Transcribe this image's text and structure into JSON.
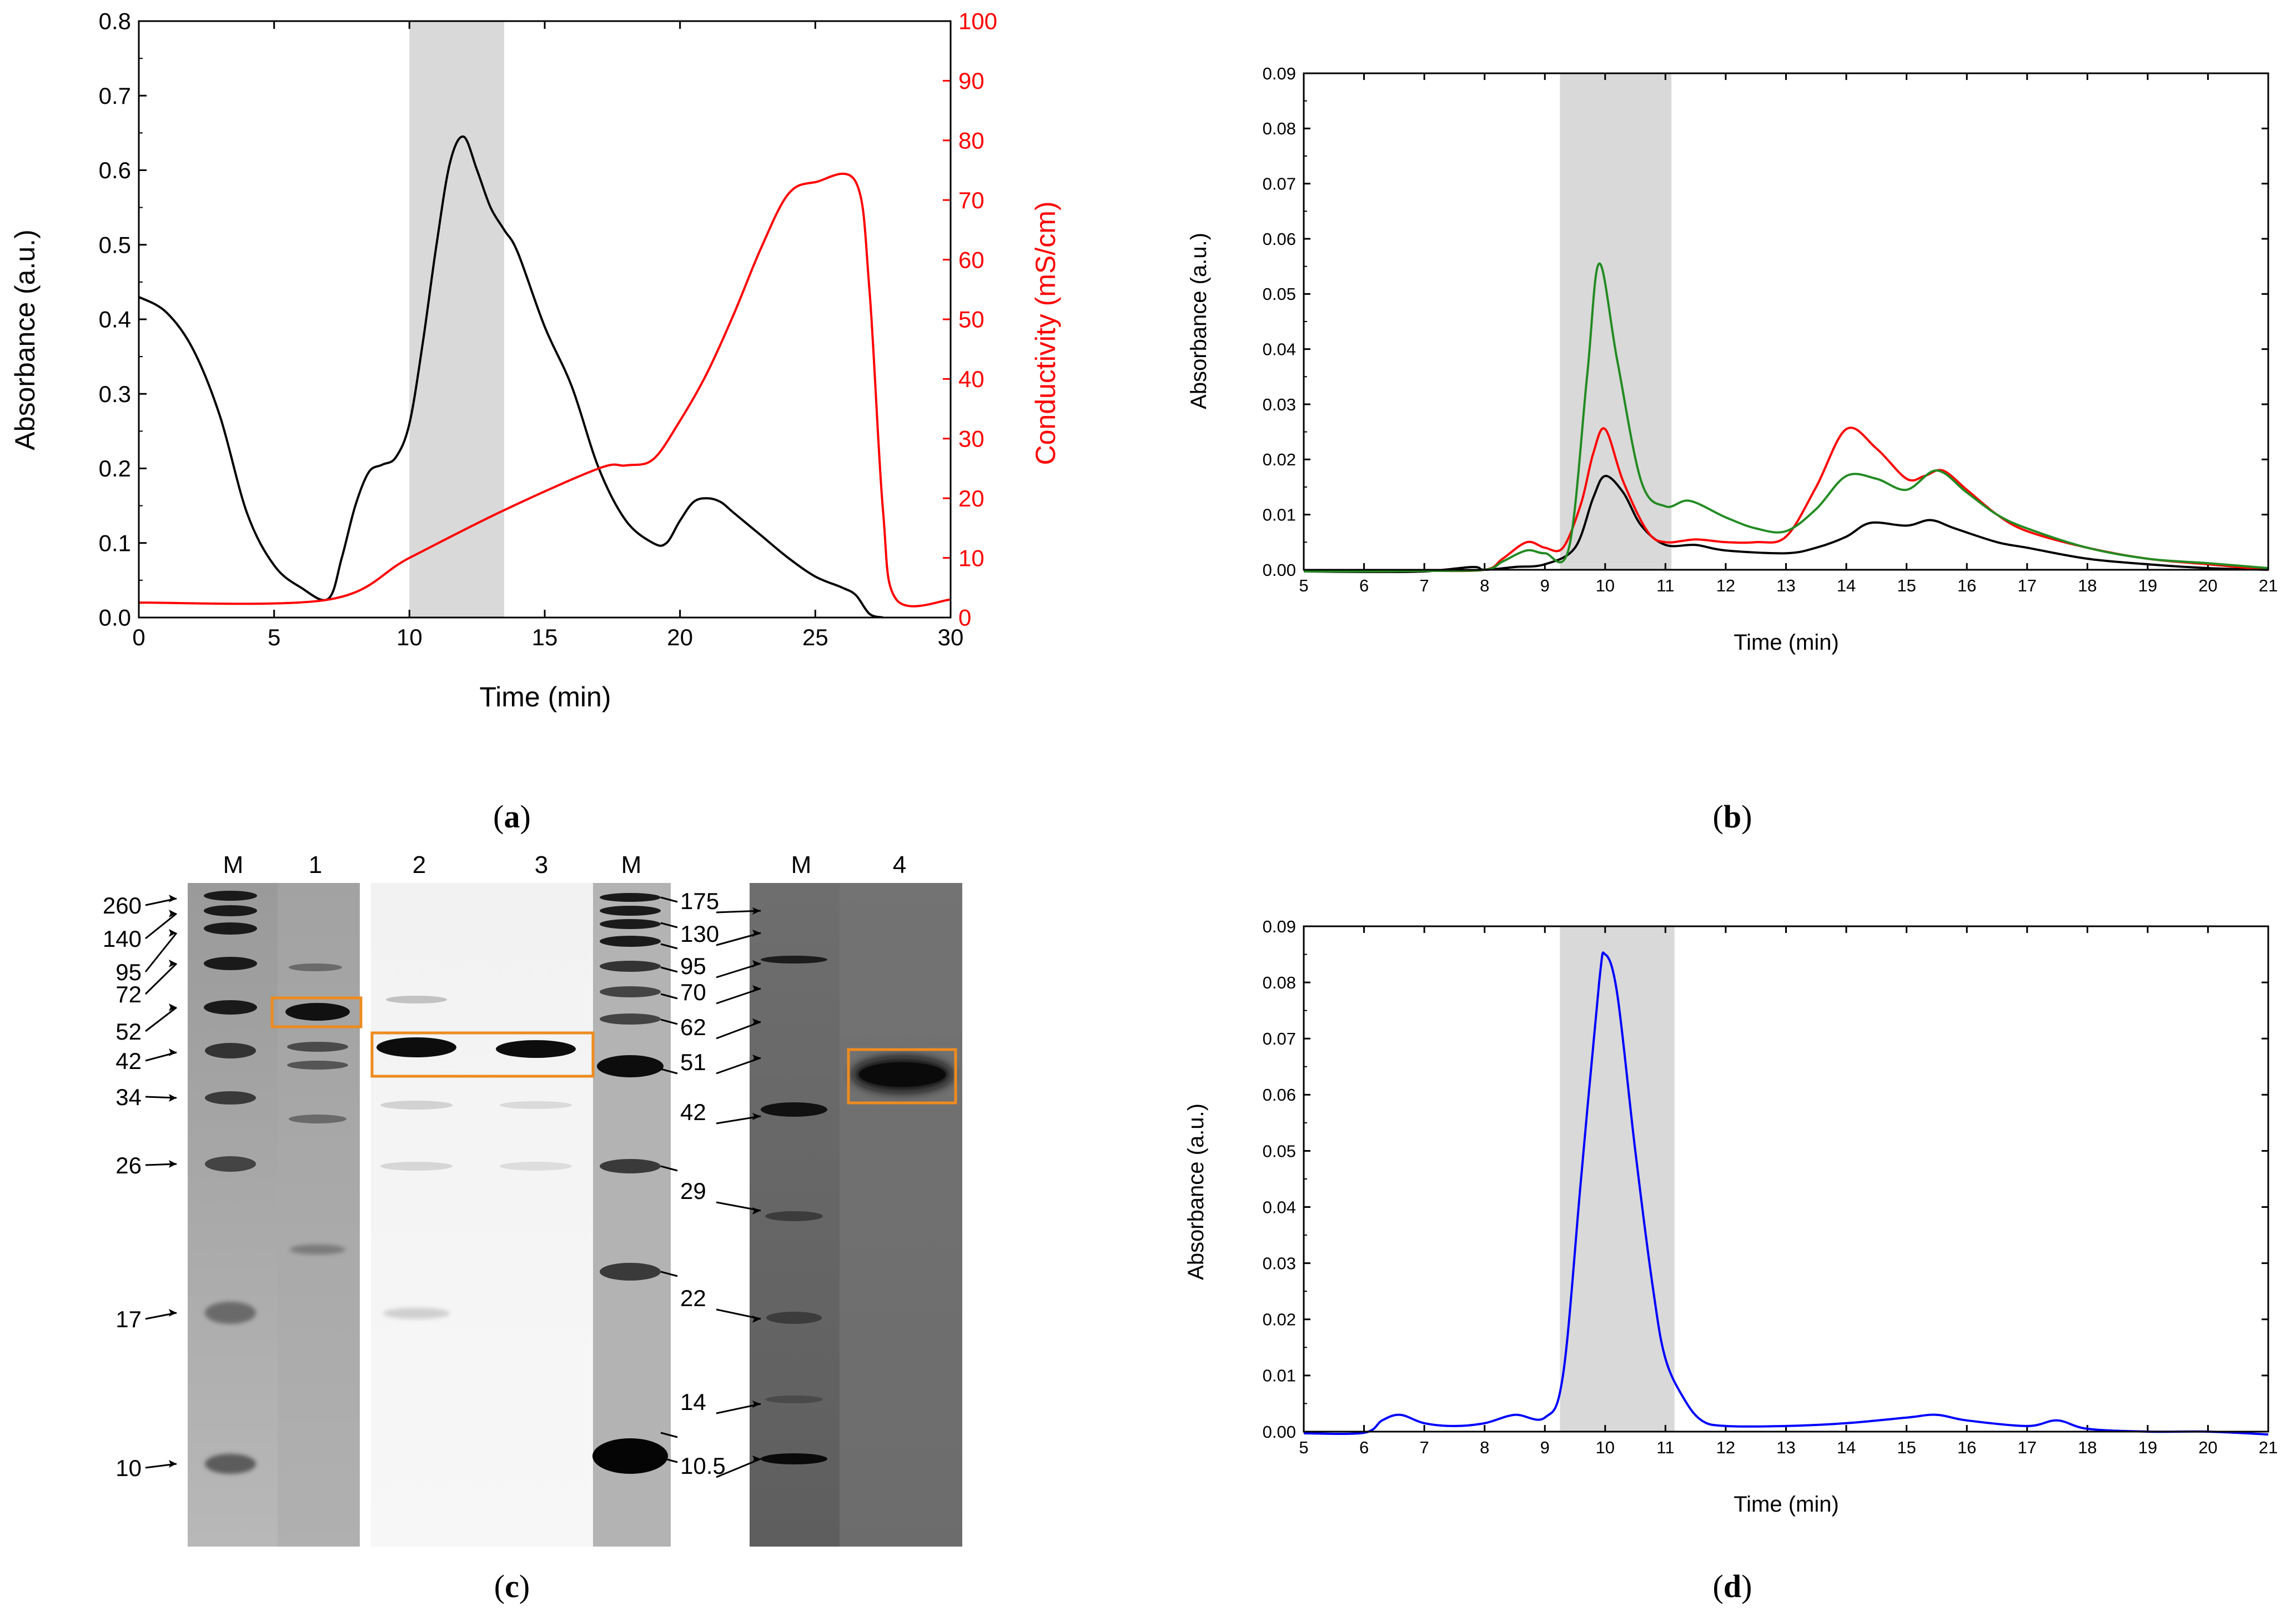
{
  "chart_data": [
    {
      "panel": "a",
      "type": "line",
      "caption": "a",
      "xlabel": "Time (min)",
      "ylabel": "Absorbance (a.u.)",
      "y2label": "Conductivity (mS/cm)",
      "xlim": [
        0,
        30
      ],
      "ylim": [
        0,
        0.8
      ],
      "y2lim": [
        0,
        100
      ],
      "xticks": [
        "0",
        "5",
        "10",
        "15",
        "20",
        "25",
        "30"
      ],
      "yticks": [
        "0.0",
        "0.1",
        "0.2",
        "0.3",
        "0.4",
        "0.5",
        "0.6",
        "0.7",
        "0.8"
      ],
      "y2ticks": [
        "0",
        "10",
        "20",
        "30",
        "40",
        "50",
        "60",
        "70",
        "80",
        "90",
        "100"
      ],
      "shaded_region": [
        10,
        13.5
      ],
      "colors": {
        "absorbance": "#000000",
        "conductivity": "#ff0000",
        "shade": "#d9d9d9"
      },
      "series": [
        {
          "axis": "left",
          "color": "#000000",
          "x": [
            0,
            1,
            2,
            3,
            4,
            5,
            6,
            7,
            7.5,
            8,
            8.5,
            9,
            9.5,
            10,
            10.5,
            11,
            11.5,
            12,
            12.5,
            13,
            13.5,
            14,
            15,
            16,
            17,
            18,
            19,
            19.5,
            20,
            20.5,
            21,
            21.5,
            22,
            23,
            24,
            25,
            26,
            26.5,
            27,
            27.5
          ],
          "y": [
            0.43,
            0.41,
            0.36,
            0.27,
            0.14,
            0.07,
            0.04,
            0.025,
            0.08,
            0.15,
            0.195,
            0.205,
            0.215,
            0.26,
            0.37,
            0.5,
            0.61,
            0.645,
            0.6,
            0.55,
            0.52,
            0.49,
            0.39,
            0.31,
            0.2,
            0.13,
            0.1,
            0.1,
            0.13,
            0.155,
            0.16,
            0.155,
            0.14,
            0.11,
            0.08,
            0.055,
            0.04,
            0.03,
            0.005,
            0
          ]
        },
        {
          "axis": "right",
          "color": "#ff0000",
          "x": [
            0,
            7,
            10,
            13.5,
            17,
            18,
            19,
            20,
            21,
            22,
            23,
            24,
            25,
            26.5,
            27,
            27.5,
            28,
            30
          ],
          "y": [
            2.5,
            3,
            10,
            18,
            25,
            25.5,
            26.5,
            33,
            41,
            51,
            62,
            71,
            73,
            73,
            55,
            18,
            3,
            3
          ]
        }
      ]
    },
    {
      "panel": "b",
      "type": "line",
      "caption": "b",
      "xlabel": "Time (min)",
      "ylabel": "Absorbance (a.u.)",
      "xlim": [
        5,
        21
      ],
      "ylim": [
        0,
        0.09
      ],
      "xticks": [
        "5",
        "6",
        "7",
        "8",
        "9",
        "10",
        "11",
        "12",
        "13",
        "14",
        "15",
        "16",
        "17",
        "18",
        "19",
        "20",
        "21"
      ],
      "yticks": [
        "0.00",
        "0.01",
        "0.02",
        "0.03",
        "0.04",
        "0.05",
        "0.06",
        "0.07",
        "0.08",
        "0.09"
      ],
      "shaded_region": [
        9.25,
        11.1
      ],
      "colors": {
        "black": "#000000",
        "red": "#ff0000",
        "green": "#228b22",
        "shade": "#d9d9d9"
      },
      "series": [
        {
          "color": "#000000",
          "x": [
            5,
            6,
            7,
            7.8,
            8,
            8.5,
            9,
            9.5,
            9.8,
            10,
            10.3,
            10.6,
            11,
            11.5,
            12,
            13,
            13.5,
            14,
            14.4,
            15,
            15.4,
            15.8,
            16.5,
            17,
            18,
            19,
            20,
            21
          ],
          "y": [
            -0.0003,
            -0.0004,
            -0.0003,
            0.0005,
            0.0,
            0.0005,
            0.001,
            0.004,
            0.013,
            0.017,
            0.014,
            0.008,
            0.0045,
            0.0045,
            0.0035,
            0.003,
            0.004,
            0.006,
            0.0085,
            0.008,
            0.009,
            0.0075,
            0.005,
            0.004,
            0.002,
            0.001,
            0.0003,
            0.0
          ]
        },
        {
          "color": "#ff0000",
          "x": [
            5,
            6,
            7,
            8,
            8.3,
            8.7,
            9.0,
            9.3,
            9.6,
            9.8,
            10,
            10.3,
            10.7,
            11,
            11.5,
            12,
            12.5,
            13,
            13.5,
            14,
            14.5,
            15,
            15.3,
            15.6,
            16,
            16.5,
            17,
            18,
            19,
            20,
            21
          ],
          "y": [
            -0.0003,
            -0.0003,
            -0.0002,
            0.0,
            0.002,
            0.005,
            0.004,
            0.004,
            0.012,
            0.021,
            0.0255,
            0.016,
            0.007,
            0.005,
            0.0055,
            0.005,
            0.005,
            0.006,
            0.015,
            0.0255,
            0.022,
            0.0165,
            0.017,
            0.018,
            0.0145,
            0.01,
            0.007,
            0.004,
            0.002,
            0.001,
            0.0
          ]
        },
        {
          "color": "#228b22",
          "x": [
            5,
            6,
            7,
            8,
            8.3,
            8.7,
            9,
            9.4,
            9.7,
            9.9,
            10.2,
            10.6,
            11,
            11.4,
            12,
            12.5,
            13,
            13.5,
            14,
            14.5,
            15,
            15.5,
            16,
            16.5,
            17,
            18,
            19,
            20,
            21
          ],
          "y": [
            -0.0003,
            -0.0003,
            -0.0002,
            0.0,
            0.0015,
            0.0035,
            0.003,
            0.004,
            0.035,
            0.0555,
            0.038,
            0.016,
            0.0115,
            0.0125,
            0.0095,
            0.0075,
            0.007,
            0.011,
            0.017,
            0.0165,
            0.0145,
            0.018,
            0.014,
            0.01,
            0.0075,
            0.004,
            0.002,
            0.0012,
            0.0003
          ]
        }
      ]
    },
    {
      "panel": "d",
      "type": "line",
      "caption": "d",
      "xlabel": "Time (min)",
      "ylabel": "Absorbance (a.u.)",
      "xlim": [
        5,
        21
      ],
      "ylim": [
        0,
        0.09
      ],
      "xticks": [
        "5",
        "6",
        "7",
        "8",
        "9",
        "10",
        "11",
        "12",
        "13",
        "14",
        "15",
        "16",
        "17",
        "18",
        "19",
        "20",
        "21"
      ],
      "yticks": [
        "0.00",
        "0.01",
        "0.02",
        "0.03",
        "0.04",
        "0.05",
        "0.06",
        "0.07",
        "0.08",
        "0.09"
      ],
      "shaded_region": [
        9.25,
        11.15
      ],
      "colors": {
        "line": "#0000ff",
        "shade": "#d9d9d9"
      },
      "series": [
        {
          "color": "#0000ff",
          "x": [
            5,
            6,
            6.3,
            6.6,
            7,
            7.5,
            8,
            8.5,
            9,
            9.3,
            9.6,
            9.9,
            10,
            10.2,
            10.5,
            10.8,
            11,
            11.3,
            11.6,
            12,
            13,
            14,
            15,
            15.5,
            16,
            17,
            17.5,
            18,
            19,
            20,
            21
          ],
          "y": [
            -0.0003,
            -0.0002,
            0.002,
            0.003,
            0.0015,
            0.001,
            0.0015,
            0.003,
            0.0025,
            0.01,
            0.045,
            0.08,
            0.085,
            0.078,
            0.05,
            0.025,
            0.013,
            0.006,
            0.002,
            0.001,
            0.001,
            0.0015,
            0.0025,
            0.003,
            0.002,
            0.001,
            0.002,
            0.0005,
            0.0,
            0.0,
            -0.0005
          ]
        }
      ]
    }
  ],
  "gel": {
    "caption": "c",
    "lane_labels": [
      "M",
      "1",
      "2",
      "3",
      "M",
      "M",
      "4"
    ],
    "left_markers": [
      "260",
      "140",
      "95",
      "72",
      "52",
      "42",
      "34",
      "26",
      "17",
      "10"
    ],
    "mid_markers": [
      "175",
      "130",
      "95",
      "70",
      "62",
      "51",
      "42",
      "29",
      "22",
      "14",
      "10.5"
    ],
    "highlight_color": "#ed8b1f"
  }
}
